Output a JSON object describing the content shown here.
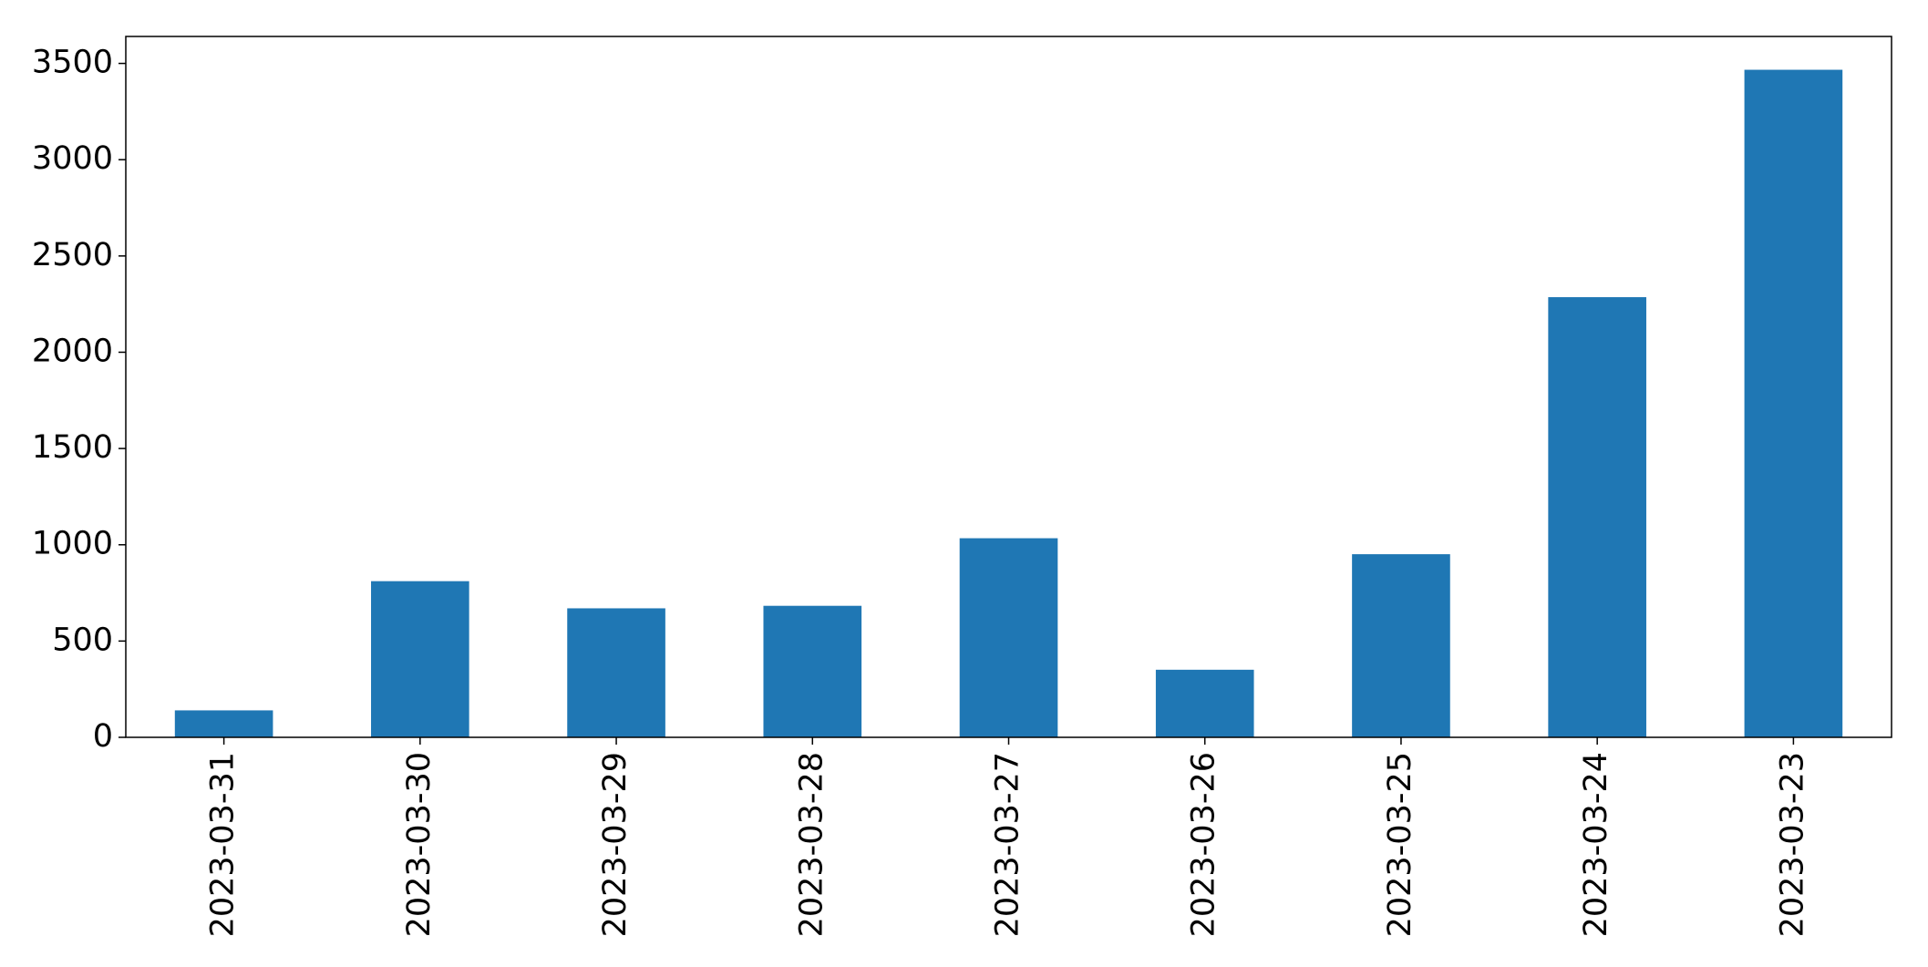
{
  "chart_data": {
    "type": "bar",
    "categories": [
      "2023-03-31",
      "2023-03-30",
      "2023-03-29",
      "2023-03-28",
      "2023-03-27",
      "2023-03-26",
      "2023-03-25",
      "2023-03-24",
      "2023-03-23"
    ],
    "values": [
      140,
      811,
      670,
      683,
      1034,
      351,
      951,
      2286,
      3467
    ],
    "color": "#1f77b4",
    "ylim": [
      0,
      3640
    ],
    "yticks": [
      0,
      500,
      1000,
      1500,
      2000,
      2500,
      3000,
      3500
    ],
    "grid": false
  }
}
